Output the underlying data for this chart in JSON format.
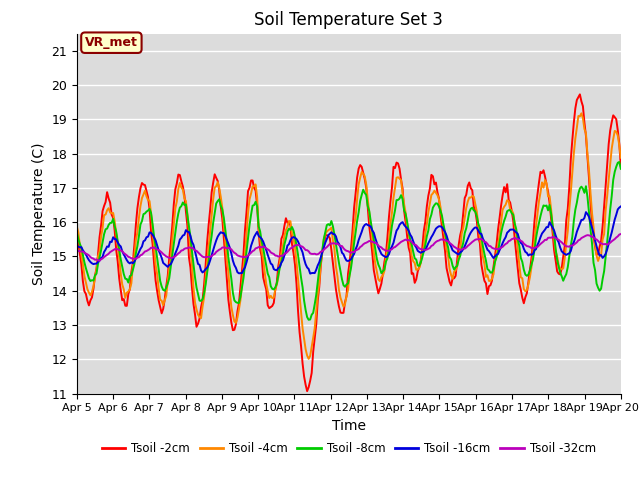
{
  "title": "Soil Temperature Set 3",
  "xlabel": "Time",
  "ylabel": "Soil Temperature (C)",
  "ylim": [
    11.0,
    21.5
  ],
  "yticks": [
    11.0,
    12.0,
    13.0,
    14.0,
    15.0,
    16.0,
    17.0,
    18.0,
    19.0,
    20.0,
    21.0
  ],
  "bg_color": "#dcdcdc",
  "annotation_text": "VR_met",
  "annotation_box_color": "#ffffcc",
  "annotation_border_color": "#8B0000",
  "series_labels": [
    "Tsoil -2cm",
    "Tsoil -4cm",
    "Tsoil -8cm",
    "Tsoil -16cm",
    "Tsoil -32cm"
  ],
  "series_colors": [
    "#ff0000",
    "#ff8800",
    "#00cc00",
    "#0000dd",
    "#bb00bb"
  ],
  "series_lw": [
    1.4,
    1.4,
    1.4,
    1.4,
    1.4
  ],
  "xtick_labels": [
    "Apr 5",
    "Apr 6",
    "Apr 7",
    "Apr 8",
    "Apr 9",
    "Apr 10",
    "Apr 11",
    "Apr 12",
    "Apr 13",
    "Apr 14",
    "Apr 15",
    "Apr 16",
    "Apr 17",
    "Apr 18",
    "Apr 19",
    "Apr 20"
  ]
}
